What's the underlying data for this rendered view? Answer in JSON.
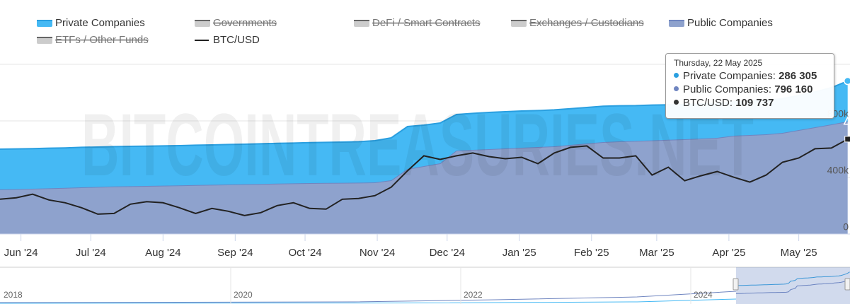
{
  "chart_data": {
    "type": "stacked-area",
    "watermark": "BITCOINTREASURIES.NET",
    "x": [
      "2024-05-23",
      "2024-05-30",
      "2024-06-06",
      "2024-06-13",
      "2024-06-20",
      "2024-06-27",
      "2024-07-04",
      "2024-07-11",
      "2024-07-18",
      "2024-07-25",
      "2024-08-01",
      "2024-08-08",
      "2024-08-15",
      "2024-08-22",
      "2024-08-29",
      "2024-09-05",
      "2024-09-12",
      "2024-09-19",
      "2024-09-26",
      "2024-10-03",
      "2024-10-10",
      "2024-10-17",
      "2024-10-24",
      "2024-10-31",
      "2024-11-07",
      "2024-11-14",
      "2024-11-21",
      "2024-11-28",
      "2024-12-05",
      "2024-12-12",
      "2024-12-19",
      "2024-12-26",
      "2025-01-02",
      "2025-01-09",
      "2025-01-16",
      "2025-01-23",
      "2025-01-30",
      "2025-02-06",
      "2025-02-13",
      "2025-02-20",
      "2025-02-27",
      "2025-03-06",
      "2025-03-13",
      "2025-03-20",
      "2025-03-27",
      "2025-04-03",
      "2025-04-10",
      "2025-04-17",
      "2025-04-24",
      "2025-05-01",
      "2025-05-08",
      "2025-05-15",
      "2025-05-22"
    ],
    "xlim": [
      "2024-05-23",
      "2025-05-23"
    ],
    "xticks": [
      {
        "value": "2024-06-01",
        "label": "Jun '24"
      },
      {
        "value": "2024-07-01",
        "label": "Jul '24"
      },
      {
        "value": "2024-08-01",
        "label": "Aug '24"
      },
      {
        "value": "2024-09-01",
        "label": "Sep '24"
      },
      {
        "value": "2024-10-01",
        "label": "Oct '24"
      },
      {
        "value": "2024-11-01",
        "label": "Nov '24"
      },
      {
        "value": "2024-12-01",
        "label": "Dec '24"
      },
      {
        "value": "2025-01-01",
        "label": "Jan '25"
      },
      {
        "value": "2025-02-01",
        "label": "Feb '25"
      },
      {
        "value": "2025-03-01",
        "label": "Mar '25"
      },
      {
        "value": "2025-04-01",
        "label": "Apr '25"
      },
      {
        "value": "2025-05-01",
        "label": "May '25"
      }
    ],
    "ylim": [
      0,
      1200000
    ],
    "yticks": [
      0,
      {
        "value": 400000,
        "label": "400k"
      },
      {
        "value": 800000,
        "label": "800k"
      }
    ],
    "y2lim": [
      43000,
      162400
    ],
    "grid": true,
    "series": [
      {
        "name": "Private Companies",
        "type": "area",
        "color": "#45b9f4",
        "line_color": "#2a9fe0",
        "visible": true,
        "values": [
          285000,
          285000,
          284000,
          284000,
          283000,
          283000,
          282000,
          282000,
          282000,
          281000,
          281000,
          281000,
          282000,
          282000,
          283000,
          283000,
          284000,
          285000,
          285000,
          286000,
          287000,
          288000,
          290000,
          295000,
          300000,
          300000,
          290000,
          285000,
          255000,
          258000,
          260000,
          260000,
          260000,
          258000,
          258000,
          256000,
          255000,
          254000,
          252000,
          250000,
          250000,
          248000,
          246000,
          245000,
          244000,
          240000,
          240000,
          240000,
          242000,
          245000,
          250000,
          260000,
          286305
        ]
      },
      {
        "name": "Governments",
        "type": "area",
        "visible": false
      },
      {
        "name": "DeFi / Smart Contracts",
        "type": "area",
        "visible": false
      },
      {
        "name": "Exchanges / Custodians",
        "type": "area",
        "visible": false
      },
      {
        "name": "Public Companies",
        "type": "area",
        "color": "#8ea2cd",
        "line_color": "#6f85c0",
        "visible": true,
        "values": [
          315000,
          317000,
          320000,
          323000,
          326000,
          330000,
          333000,
          336000,
          338000,
          340000,
          342000,
          344000,
          346000,
          348000,
          350000,
          352000,
          354000,
          356000,
          358000,
          360000,
          361000,
          362000,
          363000,
          365000,
          380000,
          460000,
          480000,
          500000,
          590000,
          595000,
          600000,
          605000,
          610000,
          615000,
          620000,
          630000,
          640000,
          650000,
          655000,
          658000,
          662000,
          666000,
          670000,
          675000,
          680000,
          695000,
          700000,
          705000,
          715000,
          735000,
          755000,
          775000,
          796160
        ]
      },
      {
        "name": "ETFs / Other Funds",
        "type": "area",
        "visible": false
      },
      {
        "name": "BTC/USD",
        "type": "line",
        "axis": "y2",
        "color": "#222222",
        "visible": true,
        "values": [
          67500,
          68500,
          71000,
          67000,
          65000,
          61500,
          57000,
          57500,
          64000,
          65800,
          65000,
          61500,
          57500,
          61000,
          59000,
          56000,
          58000,
          63000,
          65000,
          61000,
          60500,
          67500,
          68000,
          70000,
          76000,
          87500,
          98000,
          95500,
          98000,
          100000,
          97500,
          96000,
          97000,
          92500,
          100000,
          104000,
          105000,
          96500,
          96500,
          98000,
          84500,
          90000,
          80500,
          84000,
          87000,
          83000,
          79500,
          84500,
          93500,
          96500,
          103000,
          103500,
          109737
        ]
      }
    ],
    "tooltip": {
      "title": "Thursday, 22 May 2025",
      "series": [
        0,
        4,
        6
      ],
      "values": [
        "286 305",
        "796 160",
        "109 737"
      ]
    },
    "navigator": {
      "labels": [
        "2018",
        "2020",
        "2022",
        "2024"
      ]
    }
  }
}
